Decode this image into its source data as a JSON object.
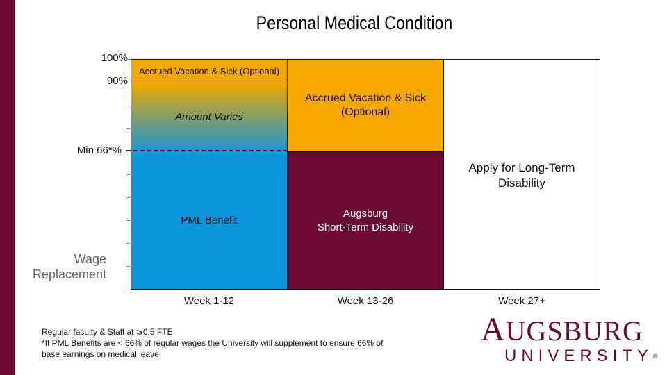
{
  "title": "Personal Medical Condition",
  "y_axis": {
    "ticks": {
      "top": "100%",
      "ninety": "90%",
      "min": "Min 66*%"
    },
    "label_line1": "Wage",
    "label_line2": "Replacement"
  },
  "cells": {
    "accrued_weeks_1_12": "Accrued Vacation & Sick (Optional)",
    "amount_varies": "Amount Varies",
    "pml_benefit": "PML Benefit",
    "accrued_weeks_13_26_line1": "Accrued Vacation & Sick",
    "accrued_weeks_13_26_line2": "(Optional)",
    "std_line1": "Augsburg",
    "std_line2": "Short-Term Disability",
    "ltd_line1": "Apply for Long-Term",
    "ltd_line2": "Disability"
  },
  "weeks": [
    "Week 1-12",
    "Week 13-26",
    "Week 27+"
  ],
  "footnote": {
    "line1": "Regular faculty & Staff at ⩾0.5 FTE",
    "line2": "*If PML Benefits are < 66% of regular wages the University will supplement to ensure 66% of",
    "line3": "base earnings on medical leave"
  },
  "logo": {
    "a": "A",
    "ugsburg": "UGSBURG",
    "university": "UNIVERSITY",
    "reg": "®"
  },
  "colors": {
    "maroon": "#6a0836",
    "orange": "#f6a800",
    "blue": "#0a97dc"
  }
}
